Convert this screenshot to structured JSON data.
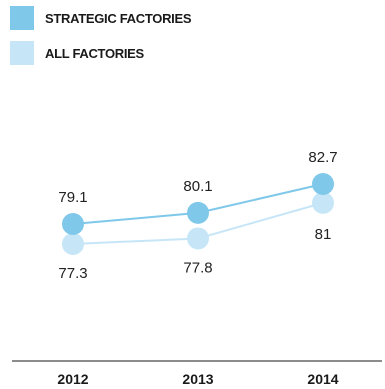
{
  "chart_data": {
    "type": "line",
    "categories": [
      "2012",
      "2013",
      "2014"
    ],
    "series": [
      {
        "name": "STRATEGIC FACTORIES",
        "values": [
          79.1,
          80.1,
          82.7
        ],
        "color": "#7fc8ea",
        "labels": [
          "79.1",
          "80.1",
          "82.7"
        ]
      },
      {
        "name": "ALL FACTORIES",
        "values": [
          77.3,
          77.8,
          81
        ],
        "color": "#c6e6f7",
        "labels": [
          "77.3",
          "77.8",
          "81"
        ]
      }
    ],
    "legend_position": "top-left",
    "grid": false
  }
}
